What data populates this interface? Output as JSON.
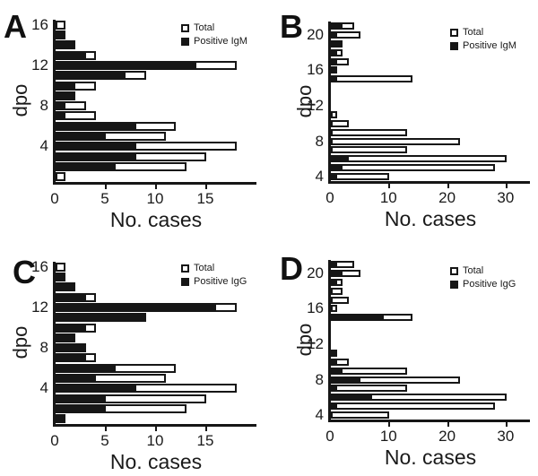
{
  "figure": {
    "xlabel": "No. cases",
    "ylabel": "dpo",
    "colors": {
      "bar_fill_total": "#ffffff",
      "bar_fill_positive": "#111111",
      "axis": "#111111",
      "background": "#ffffff"
    }
  },
  "chart_data": [
    {
      "type": "bar",
      "panel": "A",
      "orientation": "horizontal",
      "xlabel": "No. cases",
      "ylabel": "dpo",
      "legend": [
        "Total",
        "Positive IgM"
      ],
      "legend_position": "top-right",
      "grid": false,
      "categories_dpo": [
        16,
        15,
        14,
        13,
        12,
        11,
        10,
        9,
        8,
        7,
        6,
        5,
        4,
        3,
        2,
        1
      ],
      "series": [
        {
          "name": "Total",
          "fill": "#ffffff",
          "values": [
            1,
            1,
            2,
            4,
            18,
            9,
            4,
            2,
            3,
            4,
            12,
            11,
            18,
            15,
            13,
            1
          ]
        },
        {
          "name": "Positive IgM",
          "fill": "#000000",
          "values": [
            0,
            1,
            2,
            3,
            14,
            7,
            2,
            2,
            1,
            1,
            8,
            5,
            8,
            8,
            6,
            0
          ]
        }
      ],
      "x_ticks": [
        0,
        5,
        10,
        15
      ],
      "y_ticks": [
        16,
        12,
        8,
        4
      ],
      "xlim": [
        0,
        20
      ]
    },
    {
      "type": "bar",
      "panel": "B",
      "orientation": "horizontal",
      "xlabel": "No. cases",
      "ylabel": "dpo",
      "legend": [
        "Total",
        "Positive IgM"
      ],
      "legend_position": "top-right",
      "grid": false,
      "categories_dpo": [
        21,
        20,
        19,
        18,
        17,
        16,
        15,
        14,
        13,
        12,
        11,
        10,
        9,
        8,
        7,
        6,
        5,
        4
      ],
      "series": [
        {
          "name": "Total",
          "fill": "#ffffff",
          "values": [
            4,
            5,
            2,
            2,
            3,
            1,
            14,
            0,
            0,
            0,
            1,
            3,
            13,
            22,
            13,
            30,
            28,
            10
          ]
        },
        {
          "name": "Positive IgM",
          "fill": "#000000",
          "values": [
            2,
            1,
            2,
            1,
            1,
            1,
            1,
            0,
            0,
            0,
            0,
            0,
            0,
            0,
            0,
            3,
            2,
            1
          ]
        }
      ],
      "x_ticks": [
        0,
        10,
        20,
        30
      ],
      "y_ticks": [
        20,
        16,
        12,
        8,
        4
      ],
      "xlim": [
        0,
        34
      ]
    },
    {
      "type": "bar",
      "panel": "C",
      "orientation": "horizontal",
      "xlabel": "No. cases",
      "ylabel": "dpo",
      "legend": [
        "Total",
        "Positive IgG"
      ],
      "legend_position": "top-right",
      "grid": false,
      "categories_dpo": [
        16,
        15,
        14,
        13,
        12,
        11,
        10,
        9,
        8,
        7,
        6,
        5,
        4,
        3,
        2,
        1
      ],
      "series": [
        {
          "name": "Total",
          "fill": "#ffffff",
          "values": [
            1,
            1,
            2,
            4,
            18,
            9,
            4,
            2,
            3,
            4,
            12,
            11,
            18,
            15,
            13,
            1
          ]
        },
        {
          "name": "Positive IgG",
          "fill": "#000000",
          "values": [
            0,
            1,
            2,
            3,
            16,
            9,
            3,
            2,
            3,
            3,
            6,
            4,
            8,
            5,
            5,
            1
          ]
        }
      ],
      "x_ticks": [
        0,
        5,
        10,
        15
      ],
      "y_ticks": [
        16,
        12,
        8,
        4
      ],
      "xlim": [
        0,
        20
      ]
    },
    {
      "type": "bar",
      "panel": "D",
      "orientation": "horizontal",
      "xlabel": "No. cases",
      "ylabel": "dpo",
      "legend": [
        "Total",
        "Positive IgG"
      ],
      "legend_position": "top-right",
      "grid": false,
      "categories_dpo": [
        21,
        20,
        19,
        18,
        17,
        16,
        15,
        14,
        13,
        12,
        11,
        10,
        9,
        8,
        7,
        6,
        5,
        4
      ],
      "series": [
        {
          "name": "Total",
          "fill": "#ffffff",
          "values": [
            4,
            5,
            2,
            2,
            3,
            1,
            14,
            0,
            0,
            0,
            1,
            3,
            13,
            22,
            13,
            30,
            28,
            10
          ]
        },
        {
          "name": "Positive IgG",
          "fill": "#000000",
          "values": [
            1,
            2,
            1,
            0,
            0,
            0,
            9,
            0,
            0,
            0,
            1,
            1,
            2,
            5,
            1,
            7,
            1,
            0
          ]
        }
      ],
      "x_ticks": [
        0,
        10,
        20,
        30
      ],
      "y_ticks": [
        20,
        16,
        12,
        8,
        4
      ],
      "xlim": [
        0,
        34
      ]
    }
  ]
}
